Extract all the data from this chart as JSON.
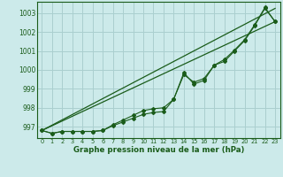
{
  "title": "Graphe pression niveau de la mer (hPa)",
  "background_color": "#cceaea",
  "grid_color": "#aacfcf",
  "line_color": "#1a5c1a",
  "xlim": [
    -0.5,
    23.5
  ],
  "ylim": [
    996.4,
    1003.6
  ],
  "yticks": [
    997,
    998,
    999,
    1000,
    1001,
    1002,
    1003
  ],
  "xticks": [
    0,
    1,
    2,
    3,
    4,
    5,
    6,
    7,
    8,
    9,
    10,
    11,
    12,
    13,
    14,
    15,
    16,
    17,
    18,
    19,
    20,
    21,
    22,
    23
  ],
  "series1": [
    996.8,
    996.65,
    996.75,
    996.75,
    996.75,
    996.75,
    996.8,
    997.05,
    997.25,
    997.45,
    997.65,
    997.75,
    997.8,
    998.45,
    999.85,
    999.25,
    999.45,
    1000.25,
    1000.45,
    1001.0,
    1001.55,
    1002.35,
    1003.25,
    1002.55
  ],
  "series2": [
    996.8,
    996.65,
    996.75,
    996.75,
    996.75,
    996.75,
    996.8,
    997.1,
    997.35,
    997.6,
    997.85,
    997.95,
    998.0,
    998.45,
    999.75,
    999.35,
    999.55,
    1000.25,
    1000.55,
    1001.05,
    1001.6,
    1002.4,
    1003.3,
    1002.55
  ],
  "trend1_x": [
    0,
    23
  ],
  "trend1_y": [
    996.8,
    1002.55
  ],
  "trend2_x": [
    0,
    23
  ],
  "trend2_y": [
    996.8,
    1003.25
  ],
  "ytick_labels": [
    "997",
    "998",
    "999",
    "1000",
    "1001",
    "1002",
    "1003"
  ]
}
